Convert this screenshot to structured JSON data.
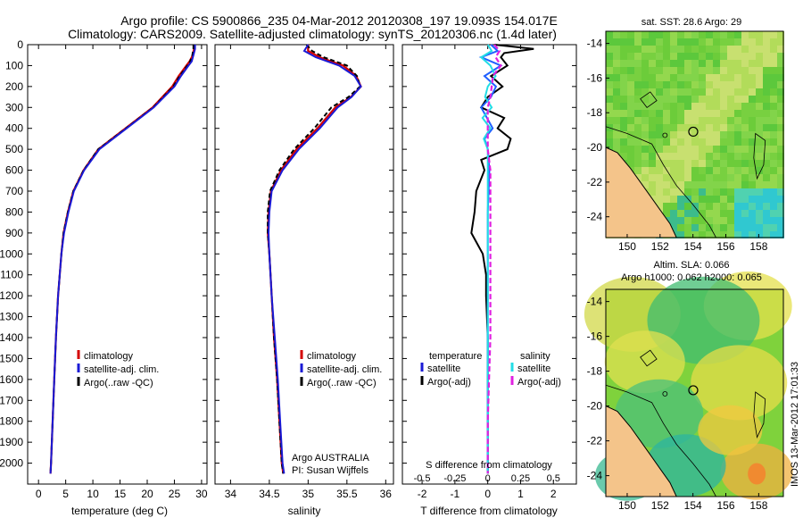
{
  "title_line1": "Argo profile: CS 5900866_235 04-Mar-2012 20120308_197 19.093S 154.017E",
  "title_line2": "Climatology: CARS2009. Satellite-adjusted climatology: synTS_20120306.nc (1.4d later)",
  "colors": {
    "climatology": "#d40000",
    "satellite": "#1a1ad6",
    "argo": "#000000",
    "sal_sat": "#22dde6",
    "sal_argo": "#e020e0",
    "land": "#f4c48a"
  },
  "chart_data": [
    {
      "type": "line",
      "name": "temperature",
      "xlabel": "temperature (deg C)",
      "xlim": [
        -2,
        31
      ],
      "xticks": [
        0,
        5,
        10,
        15,
        20,
        25,
        30
      ],
      "ylim": [
        0,
        2100
      ],
      "yticks": [
        0,
        100,
        200,
        300,
        400,
        500,
        600,
        700,
        800,
        900,
        1000,
        1100,
        1200,
        1300,
        1400,
        1500,
        1600,
        1700,
        1800,
        1900,
        2000
      ],
      "legend": [
        "climatology",
        "satellite-adj. clim.",
        "Argo(..raw -QC)"
      ],
      "series": [
        {
          "name": "climatology",
          "depth": [
            0,
            20,
            50,
            80,
            100,
            150,
            200,
            300,
            400,
            500,
            600,
            700,
            800,
            900,
            1000,
            1200,
            1400,
            1600,
            1800,
            2000,
            2050
          ],
          "values": [
            28.6,
            28.6,
            28.4,
            27.8,
            27.2,
            25.8,
            24.6,
            21.0,
            16.0,
            11.0,
            8.3,
            6.4,
            5.4,
            4.6,
            4.2,
            3.6,
            3.2,
            2.9,
            2.6,
            2.3,
            2.2
          ]
        },
        {
          "name": "satellite-adj. clim.",
          "depth": [
            0,
            20,
            50,
            80,
            100,
            150,
            200,
            300,
            400,
            500,
            600,
            700,
            800,
            900,
            1000,
            1200,
            1400,
            1600,
            1800,
            2000,
            2050
          ],
          "values": [
            28.8,
            28.8,
            28.5,
            28.2,
            27.6,
            26.2,
            25.0,
            21.2,
            16.2,
            11.2,
            8.4,
            6.5,
            5.5,
            4.7,
            4.2,
            3.6,
            3.2,
            2.9,
            2.6,
            2.3,
            2.2
          ]
        },
        {
          "name": "Argo(..raw -QC)",
          "depth": [
            0,
            20,
            50,
            80,
            100,
            150,
            200,
            300,
            400,
            500,
            600,
            700,
            800,
            900,
            1000,
            1200,
            1400,
            1600,
            1800,
            2000,
            2050
          ],
          "values": [
            28.5,
            28.5,
            28.3,
            27.9,
            27.4,
            26.0,
            24.8,
            21.1,
            16.1,
            11.0,
            8.3,
            6.4,
            5.4,
            4.6,
            4.2,
            3.6,
            3.2,
            2.9,
            2.6,
            2.3,
            2.2
          ]
        }
      ]
    },
    {
      "type": "line",
      "name": "salinity",
      "xlabel": "salinity",
      "xlim": [
        33.8,
        36.1
      ],
      "xticks": [
        34,
        34.5,
        35,
        35.5,
        36
      ],
      "ylim": [
        0,
        2100
      ],
      "legend": [
        "climatology",
        "satellite-adj. clim.",
        "Argo(..raw -QC)"
      ],
      "annotation": [
        "Argo AUSTRALIA",
        "PI: Susan Wijffels"
      ],
      "series": [
        {
          "name": "climatology",
          "depth": [
            0,
            30,
            60,
            100,
            150,
            200,
            250,
            300,
            400,
            500,
            600,
            700,
            800,
            900,
            1000,
            1200,
            1400,
            1600,
            1800,
            2000,
            2050
          ],
          "values": [
            35.0,
            35.0,
            35.15,
            35.45,
            35.62,
            35.68,
            35.55,
            35.35,
            35.12,
            34.85,
            34.65,
            34.52,
            34.49,
            34.48,
            34.5,
            34.53,
            34.56,
            34.6,
            34.63,
            34.66,
            34.68
          ]
        },
        {
          "name": "satellite-adj. clim.",
          "depth": [
            0,
            30,
            60,
            100,
            150,
            200,
            250,
            300,
            400,
            500,
            600,
            700,
            800,
            900,
            1000,
            1200,
            1400,
            1600,
            1800,
            2000,
            2050
          ],
          "values": [
            35.0,
            34.95,
            35.1,
            35.4,
            35.6,
            35.68,
            35.56,
            35.38,
            35.15,
            34.88,
            34.67,
            34.53,
            34.5,
            34.49,
            34.5,
            34.53,
            34.57,
            34.61,
            34.64,
            34.67,
            34.69
          ]
        },
        {
          "name": "Argo(..raw -QC)",
          "depth": [
            0,
            30,
            60,
            100,
            150,
            200,
            250,
            300,
            400,
            500,
            600,
            700,
            800,
            900,
            1000,
            1200,
            1400,
            1600,
            1800,
            2000,
            2050
          ],
          "values": [
            34.98,
            35.05,
            35.2,
            35.5,
            35.63,
            35.67,
            35.52,
            35.3,
            35.08,
            34.82,
            34.63,
            34.51,
            34.48,
            34.48,
            34.5,
            34.53,
            34.56,
            34.6,
            34.63,
            34.66,
            34.68
          ]
        }
      ]
    },
    {
      "type": "line",
      "name": "difference",
      "xlabel": "T difference from climatology",
      "xlim": [
        -2.6,
        2.7
      ],
      "xticks": [
        -2,
        -1,
        0,
        1,
        2
      ],
      "s_label": "S difference from climatology",
      "s_ticks_labels": [
        "-0.5",
        "-0.25",
        "0",
        "0.25",
        "0.5"
      ],
      "ylim": [
        0,
        2100
      ],
      "legend_left": {
        "header": "temperature",
        "items": [
          "satellite",
          "Argo(-adj)"
        ]
      },
      "legend_right": {
        "header": "salinity",
        "items": [
          "satellite",
          "Argo(-adj)"
        ]
      },
      "series": [
        {
          "name": "T satellite",
          "depth": [
            0,
            30,
            60,
            100,
            150,
            200,
            250,
            300,
            400,
            450,
            500,
            600,
            800,
            1000,
            1400,
            2000,
            2050
          ],
          "values": [
            0.1,
            0.3,
            -0.2,
            0.4,
            -0.1,
            0.25,
            0.1,
            -0.2,
            0.15,
            -0.1,
            0.0,
            0.05,
            0.0,
            0.0,
            0.0,
            0.0,
            0.0
          ]
        },
        {
          "name": "T Argo(-adj)",
          "depth": [
            0,
            20,
            40,
            60,
            100,
            150,
            200,
            250,
            300,
            350,
            400,
            450,
            500,
            550,
            600,
            700,
            800,
            900,
            1000,
            1100,
            1200,
            1400,
            1600,
            1800,
            2000,
            2050
          ],
          "values": [
            0.2,
            1.4,
            0.5,
            0.4,
            0.6,
            0.1,
            0.45,
            0.0,
            -0.2,
            0.5,
            0.3,
            0.7,
            0.6,
            -0.2,
            -0.1,
            -0.35,
            -0.4,
            -0.5,
            -0.15,
            -0.05,
            -0.05,
            0.0,
            0.0,
            0.0,
            0.0,
            0.0
          ]
        },
        {
          "name": "S satellite",
          "depth": [
            0,
            30,
            60,
            100,
            150,
            200,
            250,
            300,
            350,
            400,
            450,
            500,
            600,
            800,
            1000,
            1400,
            2000,
            2050
          ],
          "values": [
            0.0,
            0.03,
            -0.05,
            0.02,
            0.06,
            0.0,
            -0.02,
            0.03,
            -0.04,
            0.02,
            -0.03,
            0.0,
            0.0,
            0.0,
            0.0,
            0.0,
            0.0,
            0.0
          ]
        },
        {
          "name": "S Argo(-adj)",
          "depth": [
            0,
            30,
            60,
            100,
            150,
            200,
            250,
            300,
            400,
            500,
            600,
            800,
            1000,
            1200,
            1400,
            1600,
            1800,
            2000,
            2050
          ],
          "values": [
            0.05,
            0.09,
            0.06,
            0.1,
            0.04,
            0.03,
            0.02,
            0.0,
            0.0,
            0.0,
            0.02,
            0.02,
            0.02,
            0.02,
            0.02,
            0.01,
            0.0,
            0.0,
            0.0
          ]
        }
      ]
    },
    {
      "type": "heatmap",
      "name": "sat_sst_map",
      "title": "sat. SST: 28.6 Argo: 29",
      "xticks": [
        150,
        152,
        154,
        156,
        158
      ],
      "yticks": [
        -14,
        -16,
        -18,
        -20,
        -22,
        -24
      ],
      "xlim": [
        148.7,
        159.5
      ],
      "ylim": [
        -25.2,
        -13.3
      ],
      "argo_position": {
        "lon": 154.017,
        "lat": -19.093
      }
    },
    {
      "type": "heatmap",
      "name": "sla_map",
      "title": "Altim. SLA: 0.066",
      "subtitle": "Argo h1000: 0.062 h2000: 0.065",
      "xticks": [
        150,
        152,
        154,
        156,
        158
      ],
      "yticks": [
        -14,
        -16,
        -18,
        -20,
        -22,
        -24
      ],
      "xlim": [
        148.7,
        159.5
      ],
      "ylim": [
        -25.2,
        -13.3
      ],
      "argo_position": {
        "lon": 154.017,
        "lat": -19.093
      }
    }
  ],
  "timestamp": "IMOS 13-Mar-2012 17:01:33"
}
